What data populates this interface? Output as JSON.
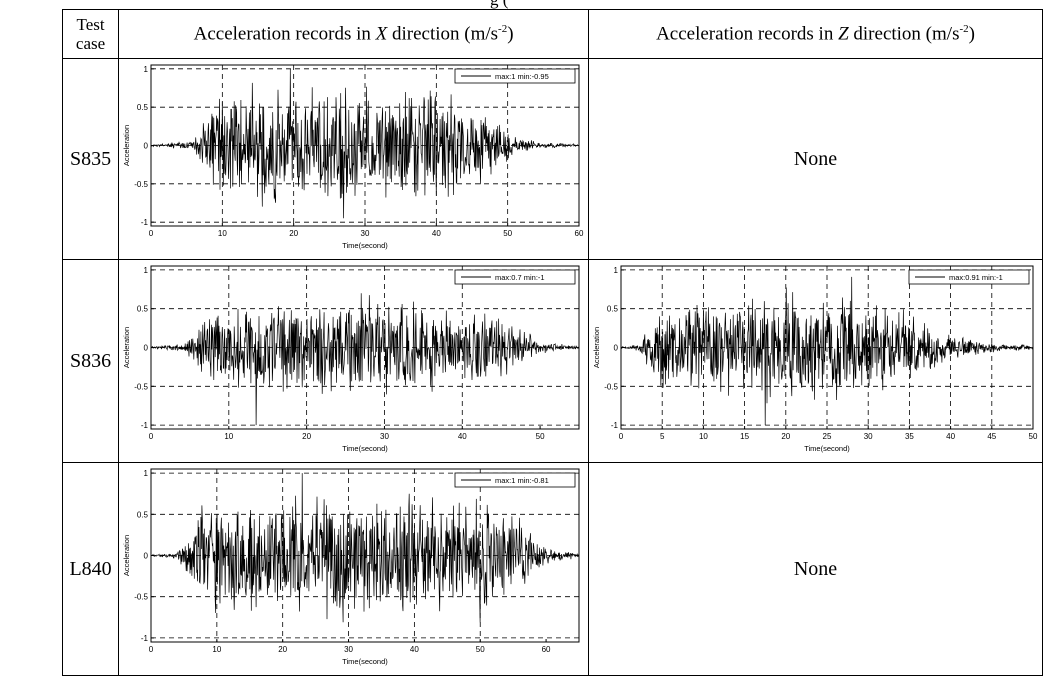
{
  "caption_fragment": "g (",
  "table": {
    "headers": {
      "test_case_line1": "Test",
      "test_case_line2": "case",
      "x_dir_prefix": "Acceleration records in ",
      "x_dir_axis": "X",
      "x_dir_suffix": " direction (m/s",
      "exponent": "-2",
      "close_paren": ")",
      "z_dir_prefix": "Acceleration records in ",
      "z_dir_axis": "Z",
      "z_dir_suffix": " direction (m/s"
    },
    "rows": [
      {
        "case": "S835",
        "z_cell": "None"
      },
      {
        "case": "S836",
        "z_cell": ""
      },
      {
        "case": "L840",
        "z_cell": "None"
      }
    ]
  },
  "chart_data": [
    {
      "type": "line",
      "test_case": "S835",
      "direction": "X",
      "xlabel": "Time(second)",
      "ylabel": "Acceleration",
      "xlim": [
        0,
        60
      ],
      "ylim": [
        -1.05,
        1.05
      ],
      "xticks": [
        0,
        10,
        20,
        30,
        40,
        50,
        60
      ],
      "yticks": [
        -1,
        -0.5,
        0,
        0.5,
        1
      ],
      "grid": true,
      "legend_position": "top-right",
      "legend_text": "max:1   min:-0.95",
      "series": [
        {
          "max": 1,
          "min": -0.95,
          "max_time": 19.5,
          "min_time": 27
        }
      ],
      "envelope": [
        [
          0,
          0.01
        ],
        [
          6,
          0.06
        ],
        [
          9,
          0.6
        ],
        [
          13,
          0.72
        ],
        [
          20,
          0.82
        ],
        [
          30,
          0.75
        ],
        [
          40,
          0.75
        ],
        [
          46,
          0.55
        ],
        [
          51,
          0.12
        ],
        [
          55,
          0.04
        ],
        [
          58,
          0.02
        ]
      ]
    },
    {
      "type": "line",
      "test_case": "S836",
      "direction": "X",
      "xlabel": "Time(second)",
      "ylabel": "Acceleration",
      "xlim": [
        0,
        55
      ],
      "ylim": [
        -1.05,
        1.05
      ],
      "xticks": [
        0,
        10,
        20,
        30,
        40,
        50
      ],
      "yticks": [
        -1,
        -0.5,
        0,
        0.5,
        1
      ],
      "grid": true,
      "legend_position": "top-right",
      "legend_text": "max:0.7   min:-1",
      "series": [
        {
          "max": 0.7,
          "min": -1,
          "max_time": 27,
          "min_time": 13.5
        }
      ],
      "envelope": [
        [
          0,
          0.01
        ],
        [
          4,
          0.05
        ],
        [
          8,
          0.45
        ],
        [
          12,
          0.55
        ],
        [
          20,
          0.6
        ],
        [
          30,
          0.6
        ],
        [
          40,
          0.5
        ],
        [
          46,
          0.35
        ],
        [
          50,
          0.08
        ],
        [
          54,
          0.03
        ]
      ]
    },
    {
      "type": "line",
      "test_case": "S836",
      "direction": "Z",
      "xlabel": "Time(second)",
      "ylabel": "Acceleration",
      "xlim": [
        0,
        50
      ],
      "ylim": [
        -1.05,
        1.05
      ],
      "xticks": [
        0,
        5,
        10,
        15,
        20,
        25,
        30,
        35,
        40,
        45,
        50
      ],
      "yticks": [
        -1,
        -0.5,
        0,
        0.5,
        1
      ],
      "grid": true,
      "legend_position": "top-right",
      "legend_text": "max:0.91   min:-1",
      "series": [
        {
          "max": 0.91,
          "min": -1,
          "max_time": 28,
          "min_time": 17.5
        }
      ],
      "envelope": [
        [
          0,
          0.01
        ],
        [
          2,
          0.04
        ],
        [
          5,
          0.5
        ],
        [
          10,
          0.6
        ],
        [
          20,
          0.68
        ],
        [
          30,
          0.6
        ],
        [
          36,
          0.4
        ],
        [
          40,
          0.15
        ],
        [
          45,
          0.06
        ],
        [
          50,
          0.03
        ]
      ]
    },
    {
      "type": "line",
      "test_case": "L840",
      "direction": "X",
      "xlabel": "Time(second)",
      "ylabel": "Acceleration",
      "xlim": [
        0,
        65
      ],
      "ylim": [
        -1.05,
        1.05
      ],
      "xticks": [
        0,
        10,
        20,
        30,
        40,
        50,
        60
      ],
      "yticks": [
        -1,
        -0.5,
        0,
        0.5,
        1
      ],
      "grid": true,
      "legend_position": "top-right",
      "legend_text": "max:1   min:-0.81",
      "series": [
        {
          "max": 1,
          "min": -0.81,
          "max_time": 23,
          "min_time": 50
        }
      ],
      "envelope": [
        [
          0,
          0.01
        ],
        [
          4,
          0.04
        ],
        [
          8,
          0.6
        ],
        [
          12,
          0.7
        ],
        [
          20,
          0.75
        ],
        [
          30,
          0.75
        ],
        [
          40,
          0.7
        ],
        [
          50,
          0.65
        ],
        [
          56,
          0.45
        ],
        [
          60,
          0.12
        ],
        [
          64,
          0.04
        ]
      ]
    }
  ]
}
